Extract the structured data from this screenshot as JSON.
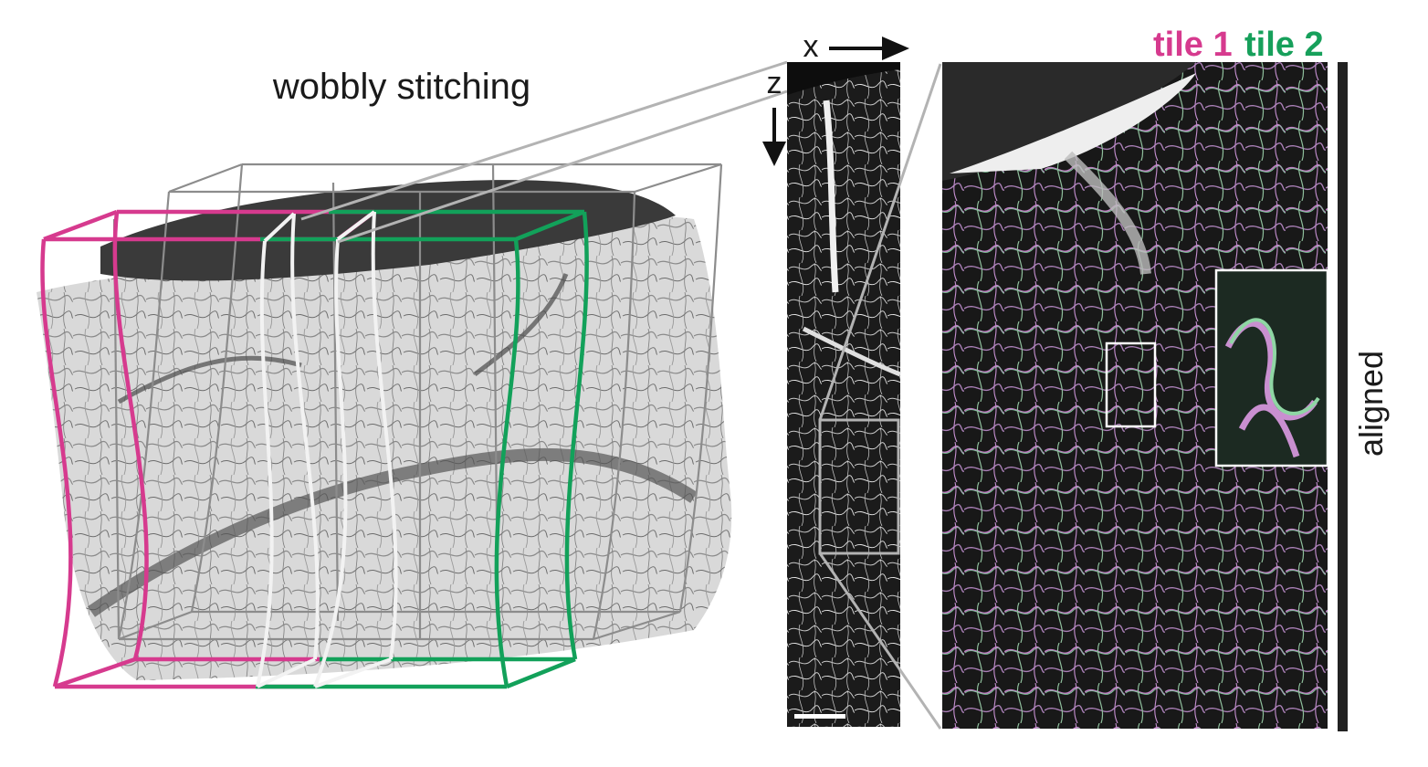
{
  "title": "wobbly stitching",
  "axes": {
    "x_label": "x",
    "z_label": "z"
  },
  "legend": {
    "tile1": {
      "label": "tile 1",
      "color": "#d63a8e"
    },
    "tile2": {
      "label": "tile 2",
      "color": "#17a05b"
    }
  },
  "side_label": "aligned",
  "colors": {
    "wireframe": "#8c8c8c",
    "tile1_frame": "#d63a8e",
    "tile2_frame": "#12a15a",
    "overlap_frame": "#f2f2f2",
    "connector": "#b3b3b3",
    "bar": "#222222"
  },
  "panels": [
    "3d-volume-render",
    "xz-cross-section",
    "zoomed-overlay",
    "inset-magnification"
  ]
}
